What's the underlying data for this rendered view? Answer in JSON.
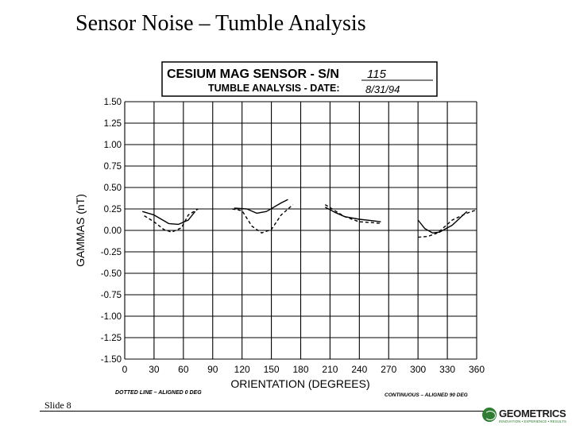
{
  "slide": {
    "title": "Sensor Noise – Tumble Analysis",
    "number_label": "Slide 8"
  },
  "header_box": {
    "line1": "CESIUM  MAG  SENSOR  -  S/N",
    "serial": "115",
    "line2": "TUMBLE ANALYSIS  -  DATE:",
    "date": "8/31/94"
  },
  "logo": {
    "name": "GEOMETRICS",
    "tagline": "INNOVATION • EXPERIENCE • RESULTS",
    "color": "#2e7d32"
  },
  "chart_data": {
    "type": "line",
    "xlabel": "ORIENTATION  (DEGREES)",
    "ylabel": "GAMMAS (nT)",
    "xlim": [
      0,
      360
    ],
    "ylim": [
      -1.5,
      1.5
    ],
    "xticks": [
      0,
      30,
      60,
      90,
      120,
      150,
      180,
      210,
      240,
      270,
      300,
      330,
      360
    ],
    "yticks": [
      1.5,
      1.25,
      1.0,
      0.75,
      0.5,
      0.25,
      0.0,
      -0.25,
      -0.5,
      -0.75,
      -1.0,
      -1.25,
      -1.5
    ],
    "ytick_labels": [
      "1.50",
      "1.25",
      "1.00",
      "0.75",
      "0.50",
      "0.25",
      "0.00",
      "-0.25",
      "-0.50",
      "-0.75",
      "-1.00",
      "-1.25",
      "-1.50"
    ],
    "grid": true,
    "legend_notes": [
      {
        "text": "DOTTED LINE  –  ALIGNED 0 DEG",
        "position": "bottom-left"
      },
      {
        "text": "CONTINUOUS  –  ALIGNED 90 DEG",
        "position": "bottom-right"
      }
    ],
    "series": [
      {
        "style": "solid",
        "segments": [
          [
            [
              18,
              0.22
            ],
            [
              30,
              0.18
            ],
            [
              45,
              0.08
            ],
            [
              55,
              0.07
            ],
            [
              65,
              0.12
            ],
            [
              72,
              0.22
            ]
          ],
          [
            [
              112,
              0.26
            ],
            [
              125,
              0.25
            ],
            [
              135,
              0.2
            ],
            [
              145,
              0.22
            ],
            [
              160,
              0.32
            ],
            [
              167,
              0.36
            ]
          ],
          [
            [
              205,
              0.27
            ],
            [
              215,
              0.21
            ],
            [
              225,
              0.16
            ],
            [
              240,
              0.13
            ],
            [
              255,
              0.11
            ],
            [
              262,
              0.1
            ]
          ],
          [
            [
              300,
              0.12
            ],
            [
              307,
              0.02
            ],
            [
              315,
              -0.03
            ],
            [
              322,
              -0.02
            ],
            [
              335,
              0.06
            ],
            [
              350,
              0.22
            ]
          ]
        ]
      },
      {
        "style": "dotted",
        "segments": [
          [
            [
              20,
              0.17
            ],
            [
              30,
              0.1
            ],
            [
              40,
              0.01
            ],
            [
              48,
              -0.02
            ],
            [
              58,
              0.03
            ],
            [
              65,
              0.18
            ],
            [
              75,
              0.25
            ]
          ],
          [
            [
              110,
              0.25
            ],
            [
              120,
              0.23
            ],
            [
              130,
              0.05
            ],
            [
              140,
              -0.03
            ],
            [
              150,
              0.01
            ],
            [
              160,
              0.18
            ],
            [
              172,
              0.3
            ]
          ],
          [
            [
              205,
              0.3
            ],
            [
              215,
              0.23
            ],
            [
              225,
              0.16
            ],
            [
              240,
              0.1
            ],
            [
              255,
              0.09
            ],
            [
              262,
              0.08
            ]
          ],
          [
            [
              300,
              -0.08
            ],
            [
              310,
              -0.07
            ],
            [
              320,
              -0.03
            ],
            [
              335,
              0.12
            ],
            [
              350,
              0.2
            ],
            [
              360,
              0.24
            ]
          ]
        ]
      }
    ]
  }
}
